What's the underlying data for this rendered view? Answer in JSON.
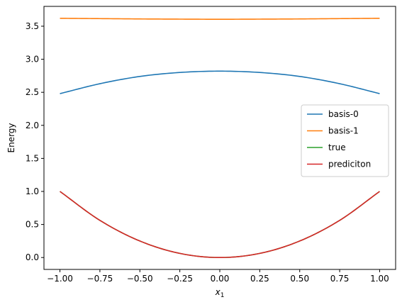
{
  "chart_data": {
    "type": "line",
    "title": "",
    "xlabel": "x",
    "xlabel_subscript": "1",
    "ylabel": "Energy",
    "xlim": [
      -1.1,
      1.1
    ],
    "ylim": [
      -0.18,
      3.8
    ],
    "xticks": [
      -1.0,
      -0.75,
      -0.5,
      -0.25,
      0.0,
      0.25,
      0.5,
      0.75,
      1.0
    ],
    "xtick_labels": [
      "−1.00",
      "−0.75",
      "−0.50",
      "−0.25",
      "0.00",
      "0.25",
      "0.50",
      "0.75",
      "1.00"
    ],
    "yticks": [
      0.0,
      0.5,
      1.0,
      1.5,
      2.0,
      2.5,
      3.0,
      3.5
    ],
    "ytick_labels": [
      "0.0",
      "0.5",
      "1.0",
      "1.5",
      "2.0",
      "2.5",
      "3.0",
      "3.5"
    ],
    "grid": false,
    "legend_position": "center-right",
    "x": [
      -1.0,
      -0.75,
      -0.5,
      -0.25,
      0.0,
      0.25,
      0.5,
      0.75,
      1.0
    ],
    "series": [
      {
        "name": "basis-0",
        "color": "#1f77b4",
        "values": [
          2.48,
          2.63,
          2.74,
          2.8,
          2.82,
          2.8,
          2.74,
          2.63,
          2.48
        ]
      },
      {
        "name": "basis-1",
        "color": "#ff7f0e",
        "values": [
          3.62,
          3.615,
          3.61,
          3.607,
          3.605,
          3.607,
          3.61,
          3.615,
          3.62
        ]
      },
      {
        "name": "true",
        "color": "#2ca02c",
        "values": [
          1.0,
          0.5625,
          0.25,
          0.0625,
          0.0,
          0.0625,
          0.25,
          0.5625,
          1.0
        ]
      },
      {
        "name": "prediciton",
        "color": "#d62728",
        "values": [
          1.0,
          0.5625,
          0.25,
          0.0625,
          0.0,
          0.0625,
          0.25,
          0.5625,
          1.0
        ]
      }
    ]
  }
}
